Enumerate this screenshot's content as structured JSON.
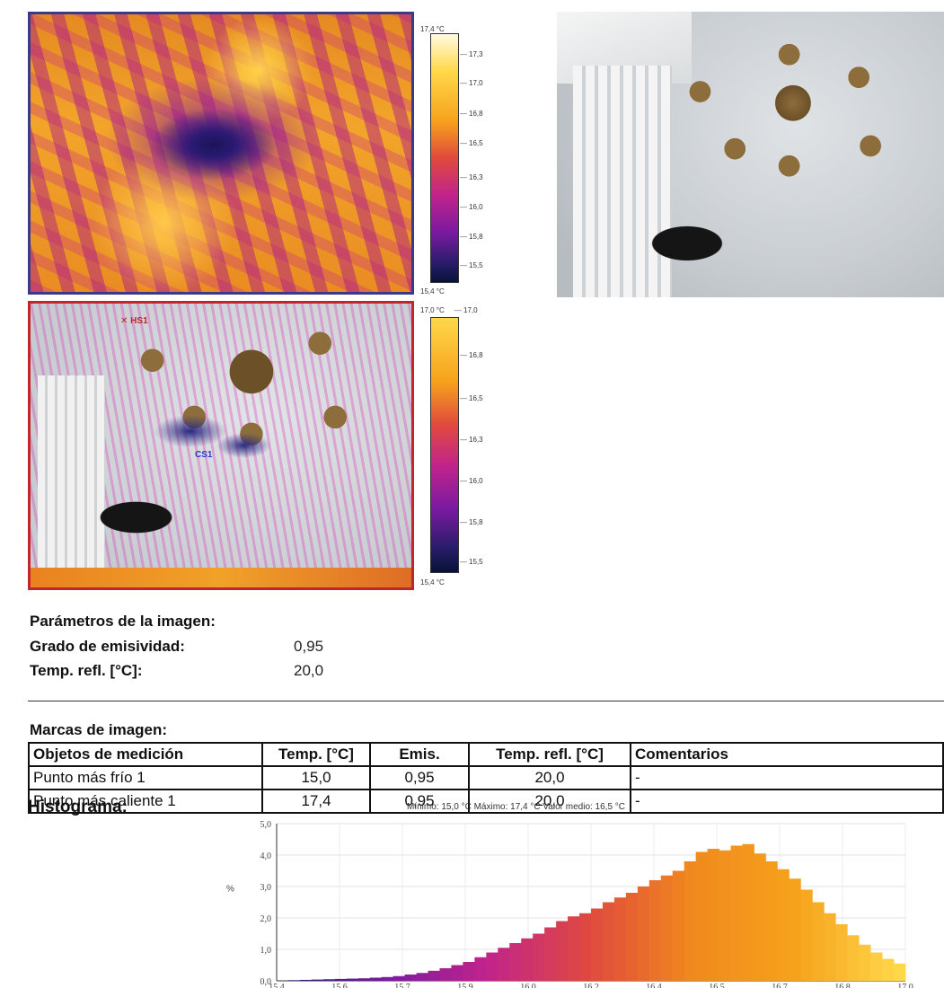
{
  "thermal_top": {
    "scale_max_label": "17,4 °C",
    "scale_min_label": "15,4 °C",
    "ticks": [
      "17,3",
      "17,0",
      "16,8",
      "16,5",
      "16,3",
      "16,0",
      "15,8",
      "15,5"
    ]
  },
  "thermal_overlay": {
    "scale_max_label": "17,0 °C",
    "scale_min_label": "15,4 °C",
    "top_tick": "17,0",
    "ticks": [
      "16,8",
      "16,5",
      "16,3",
      "16,0",
      "15,8",
      "15,5"
    ],
    "marker_hot": "HS1",
    "marker_cold": "CS1"
  },
  "params": {
    "title": "Parámetros de la imagen:",
    "emissivity_label": "Grado de emisividad:",
    "emissivity_value": "0,95",
    "refl_label": "Temp. refl. [°C]:",
    "refl_value": "20,0"
  },
  "marks": {
    "title": "Marcas de imagen:",
    "headers": [
      "Objetos de medición",
      "Temp. [°C]",
      "Emis.",
      "Temp. refl. [°C]",
      "Comentarios"
    ],
    "rows": [
      [
        "Punto más frío 1",
        "15,0",
        "0,95",
        "20,0",
        "-"
      ],
      [
        "Punto más caliente 1",
        "17,4",
        "0,95",
        "20,0",
        "-"
      ]
    ]
  },
  "histogram": {
    "title": "Histograma:",
    "stats": "Mínimo: 15,0 °C Máximo: 17,4 °C Valor medio: 16,5 °C",
    "ylabel": "%"
  },
  "chart_data": {
    "type": "bar",
    "title": "Histograma:",
    "xlabel": "",
    "ylabel": "%",
    "ylim": [
      0,
      5.0
    ],
    "xlim": [
      15.4,
      17.0
    ],
    "y_ticks": [
      "5,0",
      "4,0",
      "3,0",
      "2,0",
      "1,0",
      "0,0"
    ],
    "x_ticks": [
      "15,4",
      "15,6",
      "15,7",
      "15,9",
      "16,0",
      "16,2",
      "16,4",
      "16,5",
      "16,7",
      "16,8",
      "17,0"
    ],
    "values": [
      0.0,
      0.02,
      0.03,
      0.04,
      0.05,
      0.06,
      0.07,
      0.08,
      0.1,
      0.12,
      0.15,
      0.2,
      0.25,
      0.32,
      0.4,
      0.5,
      0.6,
      0.75,
      0.9,
      1.05,
      1.2,
      1.35,
      1.5,
      1.7,
      1.9,
      2.05,
      2.15,
      2.3,
      2.5,
      2.65,
      2.8,
      3.0,
      3.2,
      3.35,
      3.5,
      3.8,
      4.1,
      4.2,
      4.15,
      4.3,
      4.35,
      4.05,
      3.8,
      3.55,
      3.25,
      2.9,
      2.5,
      2.15,
      1.8,
      1.45,
      1.15,
      0.9,
      0.7,
      0.55
    ],
    "grid": true,
    "colormap": [
      "#2a1d6b",
      "#7a1aa0",
      "#c1248a",
      "#e04a3d",
      "#f08a1d",
      "#f6a21c",
      "#ffd84a"
    ]
  }
}
